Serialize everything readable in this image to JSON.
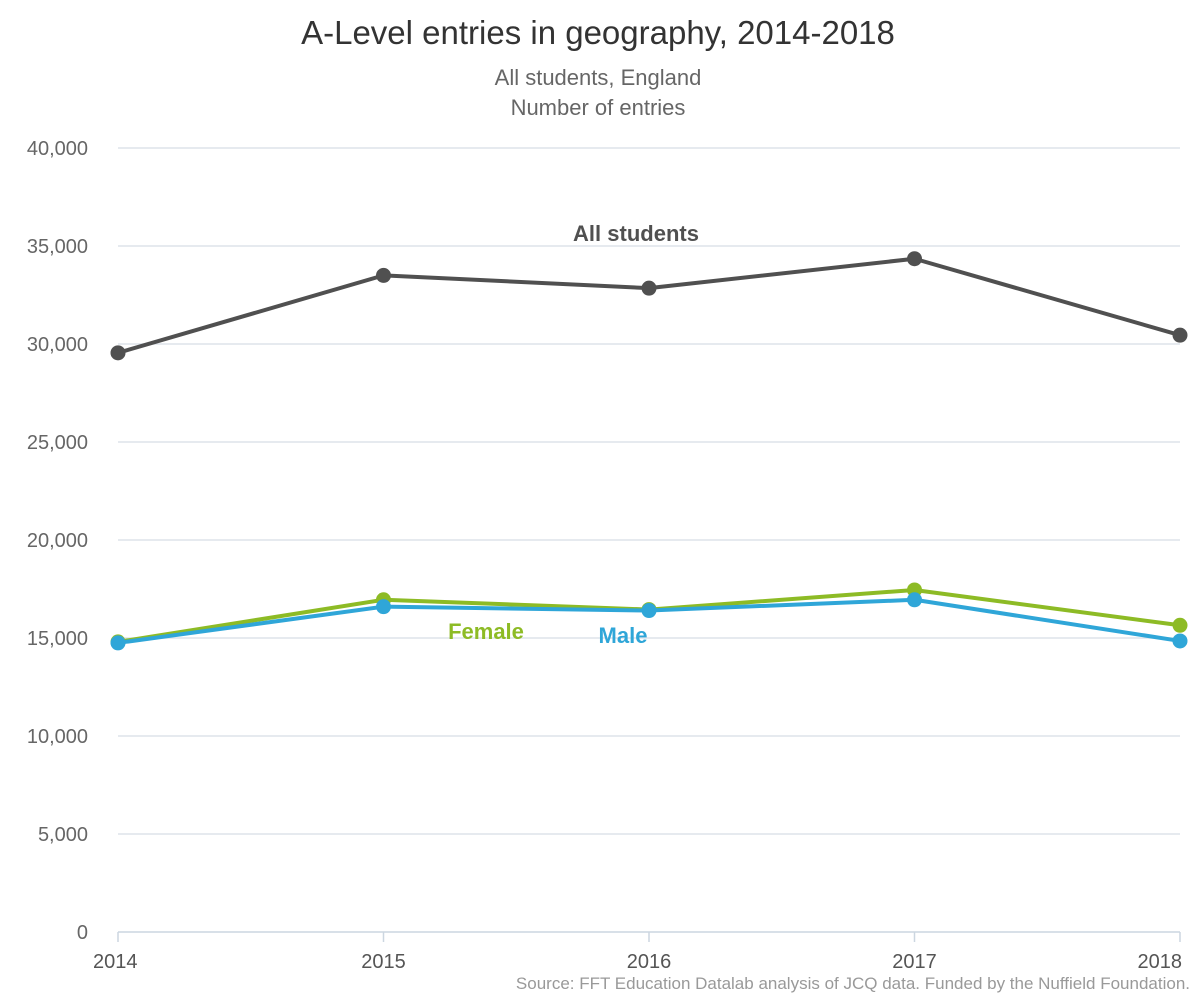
{
  "chart_data": {
    "type": "line",
    "title": "A-Level entries in geography, 2014-2018",
    "subtitle_lines": [
      "All students, England",
      "Number of entries"
    ],
    "x": [
      "2014",
      "2015",
      "2016",
      "2017",
      "2018"
    ],
    "ylim": [
      0,
      40000
    ],
    "yticks": [
      "0",
      "5,000",
      "10,000",
      "15,000",
      "20,000",
      "25,000",
      "30,000",
      "35,000",
      "40,000"
    ],
    "grid": true,
    "series": [
      {
        "name": "All students",
        "color": "#505050",
        "values": [
          29550,
          33500,
          32850,
          34350,
          30450
        ]
      },
      {
        "name": "Female",
        "color": "#8dbb25",
        "values": [
          14800,
          16950,
          16450,
          17450,
          15650
        ]
      },
      {
        "name": "Male",
        "color": "#2fa6d8",
        "values": [
          14750,
          16600,
          16400,
          16950,
          14850
        ]
      }
    ],
    "source": "Source: FFT Education Datalab analysis of JCQ data. Funded by the Nuffield Foundation."
  }
}
